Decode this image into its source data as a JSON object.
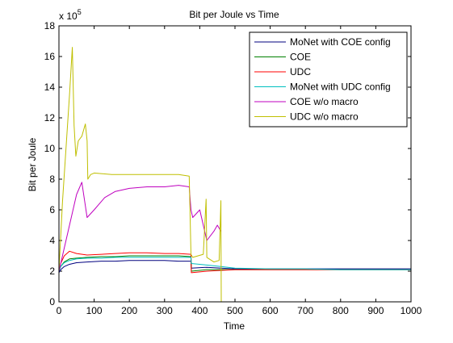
{
  "chart_data": {
    "type": "line",
    "title": "Bit per Joule vs Time",
    "xlabel": "Time",
    "ylabel": "Bit per Joule",
    "y_exponent_label": "x 10",
    "y_exponent_power": "5",
    "xlim": [
      0,
      1000
    ],
    "ylim": [
      0,
      18
    ],
    "xticks": [
      0,
      100,
      200,
      300,
      400,
      500,
      600,
      700,
      800,
      900,
      1000
    ],
    "yticks": [
      0,
      2,
      4,
      6,
      8,
      10,
      12,
      14,
      16,
      18
    ],
    "legend_position": "top-right",
    "series": [
      {
        "name": "MoNet with COE config",
        "color": "#00007f",
        "x": [
          0,
          5,
          15,
          30,
          50,
          80,
          120,
          160,
          200,
          250,
          300,
          340,
          375,
          376,
          420,
          460,
          500,
          600,
          700,
          800,
          900,
          1000
        ],
        "y": [
          1.9,
          2.1,
          2.3,
          2.45,
          2.55,
          2.6,
          2.65,
          2.65,
          2.7,
          2.7,
          2.7,
          2.65,
          2.65,
          2.2,
          2.25,
          2.2,
          2.15,
          2.15,
          2.15,
          2.15,
          2.15,
          2.15
        ]
      },
      {
        "name": "COE",
        "color": "#007f00",
        "x": [
          0,
          5,
          15,
          30,
          50,
          80,
          120,
          160,
          200,
          250,
          300,
          340,
          375,
          376,
          420,
          460,
          500,
          600,
          700,
          800,
          900,
          1000
        ],
        "y": [
          2.0,
          2.3,
          2.6,
          2.8,
          2.85,
          2.9,
          2.95,
          2.95,
          3.0,
          3.0,
          3.0,
          3.0,
          2.95,
          2.0,
          2.1,
          2.1,
          2.1,
          2.1,
          2.1,
          2.1,
          2.1,
          2.1
        ]
      },
      {
        "name": "UDC",
        "color": "#ff0000",
        "x": [
          0,
          5,
          15,
          30,
          50,
          80,
          120,
          160,
          200,
          250,
          300,
          340,
          375,
          376,
          420,
          460,
          500,
          600,
          700,
          800,
          900,
          1000
        ],
        "y": [
          2.0,
          2.5,
          3.0,
          3.3,
          3.15,
          3.05,
          3.1,
          3.15,
          3.2,
          3.2,
          3.15,
          3.15,
          3.1,
          1.9,
          2.0,
          2.05,
          2.1,
          2.1,
          2.1,
          2.1,
          2.1,
          2.1
        ]
      },
      {
        "name": "MoNet with UDC config",
        "color": "#00bfbf",
        "x": [
          0,
          5,
          15,
          30,
          50,
          80,
          120,
          160,
          200,
          250,
          300,
          340,
          375,
          376,
          420,
          460,
          500,
          600,
          700,
          800,
          900,
          1000
        ],
        "y": [
          2.0,
          2.3,
          2.55,
          2.7,
          2.8,
          2.85,
          2.85,
          2.9,
          2.9,
          2.9,
          2.9,
          2.9,
          2.9,
          2.5,
          2.4,
          2.3,
          2.2,
          2.15,
          2.15,
          2.1,
          2.1,
          2.1
        ]
      },
      {
        "name": "COE w/o macro",
        "color": "#bf00bf",
        "x": [
          0,
          10,
          20,
          35,
          50,
          65,
          80,
          100,
          130,
          160,
          200,
          250,
          300,
          340,
          370,
          375,
          380,
          400,
          420,
          440,
          450,
          455,
          460
        ],
        "y": [
          2.0,
          3.0,
          4.0,
          5.5,
          7.0,
          7.8,
          5.5,
          6.0,
          6.8,
          7.2,
          7.4,
          7.5,
          7.5,
          7.6,
          7.5,
          6.0,
          5.5,
          6.0,
          4.0,
          4.6,
          5.0,
          4.8,
          4.6
        ]
      },
      {
        "name": "UDC w/o macro",
        "color": "#bfbf00",
        "x": [
          0,
          10,
          20,
          30,
          38,
          43,
          48,
          55,
          65,
          75,
          80,
          82,
          90,
          100,
          150,
          200,
          250,
          300,
          340,
          370,
          375,
          380,
          410,
          418,
          420,
          440,
          455,
          460,
          461
        ],
        "y": [
          2.0,
          6.5,
          10.0,
          13.5,
          16.6,
          11.5,
          9.5,
          10.5,
          10.8,
          11.6,
          10.5,
          8.0,
          8.3,
          8.4,
          8.3,
          8.3,
          8.3,
          8.3,
          8.3,
          8.2,
          3.1,
          2.9,
          3.1,
          6.7,
          2.9,
          2.6,
          2.7,
          6.6,
          0.0
        ]
      }
    ]
  }
}
